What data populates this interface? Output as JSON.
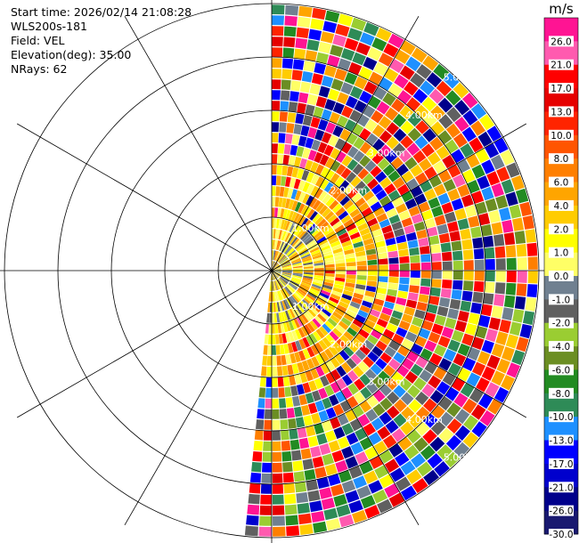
{
  "header": {
    "start_time": "Start time: 2026/02/14 21:08:28",
    "instrument": "WLS200s-181",
    "field": "Field: VEL",
    "elevation": "Elevation(deg): 35.00",
    "nrays": "NRays: 62"
  },
  "chart_data": {
    "type": "heatmap",
    "projection": "polar-ppi",
    "field": "VEL",
    "units": "m/s",
    "elevation_deg": 35.0,
    "n_rays": 62,
    "azimuth_coverage_deg": [
      0,
      186
    ],
    "range_rings": [
      "1.00km",
      "2.00km",
      "3.00km",
      "4.00km",
      "5.00km"
    ],
    "range_ring_km": [
      1,
      2,
      3,
      4,
      5
    ],
    "data_extent_km": 5.0,
    "gate_count": 25,
    "spoke_interval_deg": 30,
    "colorbar": {
      "unit": "m/s",
      "labels": [
        "26.0",
        "21.0",
        "17.0",
        "13.0",
        "10.0",
        "8.0",
        "6.0",
        "4.0",
        "2.0",
        "1.0",
        "0.0",
        "-1.0",
        "-2.0",
        "-4.0",
        "-6.0",
        "-8.0",
        "-10.0",
        "-13.0",
        "-17.0",
        "-21.0",
        "-26.0",
        "-30.0"
      ],
      "colors": [
        "#ff1493",
        "#ff5aaf",
        "#ff0000",
        "#e60000",
        "#ff2400",
        "#ff5500",
        "#ff7f00",
        "#ffa500",
        "#ffcc00",
        "#ffff00",
        "#ffff66",
        "#708090",
        "#606060",
        "#9acd32",
        "#6b8e23",
        "#228b22",
        "#2e8b57",
        "#1e90ff",
        "#0000ff",
        "#0000cd",
        "#00008b",
        "#191970"
      ]
    },
    "pattern": {
      "near_range_km": [
        0,
        1.0
      ],
      "near_values": [
        0.0,
        -1.0,
        -2.0,
        1.0,
        4.0
      ],
      "mid_range_km": [
        1.0,
        2.2
      ],
      "mid_values": [
        4.0,
        2.0,
        1.0,
        0.0,
        6.0
      ],
      "far_values": [
        26.0,
        21.0,
        17.0,
        13.0,
        10.0,
        8.0,
        6.0,
        4.0,
        2.0,
        1.0,
        0.0,
        -1.0,
        -2.0,
        -4.0,
        -6.0,
        -8.0,
        -10.0,
        -13.0,
        -17.0,
        -21.0,
        -26.0
      ]
    }
  }
}
